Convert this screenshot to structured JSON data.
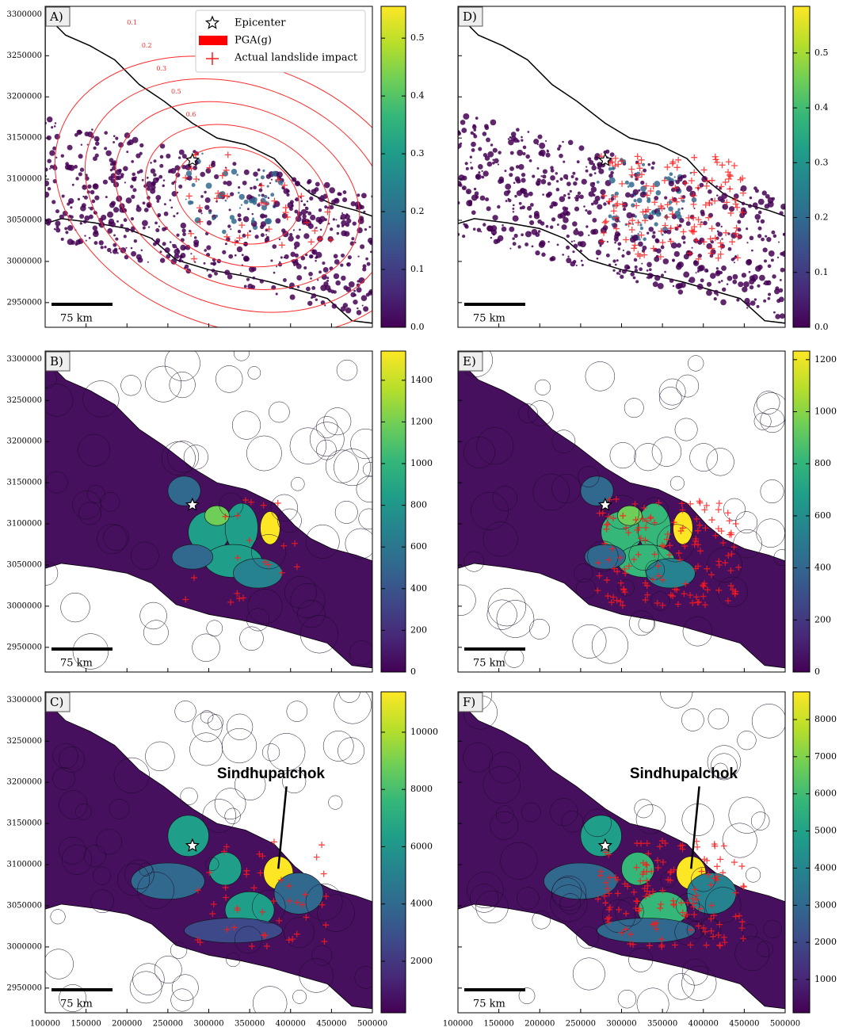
{
  "xlim": [
    100000,
    500000
  ],
  "ylim": [
    2920000,
    3310000
  ],
  "xticks": [
    100000,
    150000,
    200000,
    250000,
    300000,
    350000,
    400000,
    450000,
    500000
  ],
  "yticks": [
    2950000,
    3000000,
    3050000,
    3100000,
    3150000,
    3200000,
    3250000,
    3300000
  ],
  "epicenter": [
    280000,
    3123000
  ],
  "scale_bar": "75 km",
  "legend": [
    "Epicenter",
    "PGA(g)",
    "Actual landslide impact"
  ],
  "contour_labels": [
    "0.1",
    "0.2",
    "0.3",
    "0.5",
    "0.6"
  ],
  "panels": [
    {
      "label": "A)",
      "colorbar": {
        "lim": [
          0,
          0.555
        ],
        "ticks": [
          {
            "value": 0,
            "label": "0.0"
          },
          0.1,
          0.2,
          0.3,
          0.4,
          0.5
        ]
      }
    },
    {
      "label": "B)",
      "colorbar": {
        "lim": [
          0,
          1540
        ],
        "ticks": [
          0,
          200,
          400,
          600,
          800,
          1000,
          1200,
          1400
        ]
      }
    },
    {
      "label": "C)",
      "annotation": "Sindhupalchok",
      "colorbar": {
        "lim": [
          200,
          11410
        ],
        "ticks": [
          2000,
          4000,
          6000,
          8000,
          10000
        ]
      }
    },
    {
      "label": "D)",
      "colorbar": {
        "lim": [
          0,
          0.585
        ],
        "ticks": [
          {
            "value": 0,
            "label": "0.0"
          },
          0.1,
          0.2,
          0.3,
          0.4,
          0.5
        ]
      }
    },
    {
      "label": "E)",
      "colorbar": {
        "lim": [
          0,
          1233
        ],
        "ticks": [
          0,
          200,
          400,
          600,
          800,
          1000,
          1200
        ]
      }
    },
    {
      "label": "F)",
      "annotation": "Sindhupalchok",
      "colorbar": {
        "lim": [
          104,
          8747
        ],
        "ticks": [
          1000,
          2000,
          3000,
          4000,
          5000,
          6000,
          7000,
          8000
        ]
      }
    }
  ]
}
